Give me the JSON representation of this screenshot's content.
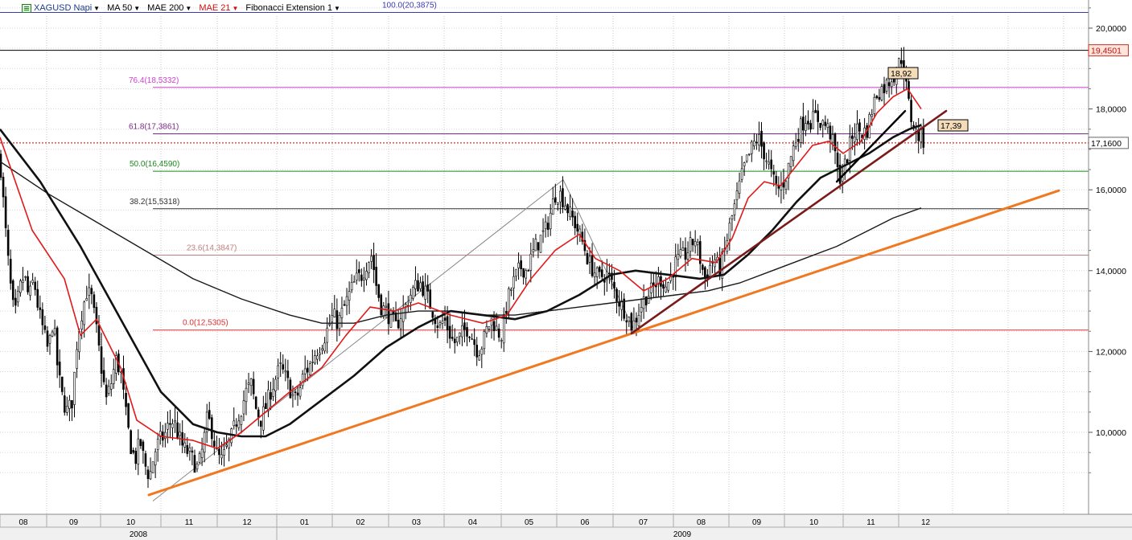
{
  "toolbar": {
    "symbol": "XAGUSD Napi",
    "ma50": "MA 50",
    "mae200": "MAE 200",
    "mae21": "MAE 21",
    "fib": "Fibonacci Extension 1",
    "colors": {
      "symbol": "#1a3a8a",
      "ma50": "#000000",
      "mae200": "#000000",
      "mae21": "#d01010",
      "fib": "#000000"
    }
  },
  "price_badges": {
    "high": "19,4501",
    "last": "17,1600",
    "peak_label": "18,92",
    "trend_label": "17,39"
  },
  "chart_data": {
    "type": "candlestick",
    "y_axis": {
      "ylim": [
        8.0,
        20.6
      ],
      "ticks": [
        "10,0000",
        "12,0000",
        "14,0000",
        "16,0000",
        "18,0000",
        "20,0000"
      ],
      "tick_values": [
        10,
        12,
        14,
        16,
        18,
        20
      ],
      "side": "right"
    },
    "x_axis": {
      "months": [
        "08",
        "09",
        "10",
        "11",
        "12",
        "01",
        "02",
        "03",
        "04",
        "05",
        "06",
        "07",
        "08",
        "09",
        "10",
        "11",
        "12"
      ],
      "years": [
        "2008",
        "2009"
      ],
      "grid": true
    },
    "fibonacci": [
      {
        "label": "100.0(20,3875)",
        "value": 20.3875,
        "color": "#3a3ab0"
      },
      {
        "label": "76.4(18,5332)",
        "value": 18.5332,
        "color": "#d040d0"
      },
      {
        "label": "61.8(17,3861)",
        "value": 17.3861,
        "color": "#7a2a8a"
      },
      {
        "label": "50.0(16,4590)",
        "value": 16.459,
        "color": "#1a8a1a"
      },
      {
        "label": "38.2(15,5318)",
        "value": 15.5318,
        "color": "#333333"
      },
      {
        "label": "23.6(14,3847)",
        "value": 14.3847,
        "color": "#c08080"
      },
      {
        "label": "0.0(12,5305)",
        "value": 12.5305,
        "color": "#e03030"
      }
    ],
    "horizontal_lines": [
      {
        "name": "high",
        "value": 19.4501,
        "color": "#000000"
      },
      {
        "name": "last",
        "value": 17.16,
        "color": "#c00000"
      }
    ],
    "close_path": [
      [
        0,
        16.8
      ],
      [
        6,
        15.2
      ],
      [
        12,
        13.8
      ],
      [
        18,
        12.8
      ],
      [
        24,
        13.5
      ],
      [
        30,
        13.9
      ],
      [
        36,
        13.3
      ],
      [
        42,
        13.8
      ],
      [
        48,
        13.0
      ],
      [
        54,
        12.5
      ],
      [
        60,
        12.0
      ],
      [
        66,
        12.8
      ],
      [
        72,
        11.5
      ],
      [
        78,
        10.8
      ],
      [
        84,
        10.5
      ],
      [
        90,
        10.8
      ],
      [
        96,
        12.3
      ],
      [
        102,
        13.0
      ],
      [
        108,
        13.5
      ],
      [
        114,
        13.3
      ],
      [
        120,
        12.5
      ],
      [
        126,
        11.6
      ],
      [
        132,
        10.8
      ],
      [
        138,
        11.2
      ],
      [
        144,
        11.8
      ],
      [
        150,
        11.5
      ],
      [
        156,
        10.5
      ],
      [
        162,
        9.7
      ],
      [
        168,
        9.3
      ],
      [
        174,
        9.8
      ],
      [
        180,
        9.2
      ],
      [
        186,
        8.9
      ],
      [
        192,
        9.5
      ],
      [
        198,
        9.8
      ],
      [
        204,
        9.9
      ],
      [
        210,
        10.2
      ],
      [
        216,
        10.3
      ],
      [
        222,
        9.9
      ],
      [
        228,
        9.6
      ],
      [
        234,
        9.5
      ],
      [
        240,
        9.3
      ],
      [
        246,
        9.1
      ],
      [
        252,
        9.6
      ],
      [
        258,
        10.4
      ],
      [
        264,
        10.0
      ],
      [
        270,
        9.4
      ],
      [
        276,
        9.3
      ],
      [
        282,
        9.6
      ],
      [
        288,
        9.9
      ],
      [
        294,
        10.3
      ],
      [
        300,
        10.6
      ],
      [
        306,
        11.0
      ],
      [
        312,
        11.2
      ],
      [
        318,
        10.6
      ],
      [
        324,
        10.3
      ],
      [
        330,
        10.6
      ],
      [
        336,
        11.0
      ],
      [
        342,
        11.3
      ],
      [
        348,
        11.6
      ],
      [
        354,
        11.4
      ],
      [
        360,
        11.1
      ],
      [
        366,
        10.8
      ],
      [
        372,
        11.0
      ],
      [
        378,
        11.5
      ],
      [
        384,
        11.6
      ],
      [
        390,
        11.9
      ],
      [
        396,
        12.1
      ],
      [
        402,
        12.3
      ],
      [
        408,
        12.6
      ],
      [
        414,
        12.9
      ],
      [
        420,
        12.7
      ],
      [
        426,
        13.0
      ],
      [
        432,
        13.3
      ],
      [
        438,
        13.6
      ],
      [
        444,
        13.8
      ],
      [
        450,
        13.9
      ],
      [
        456,
        14.2
      ],
      [
        462,
        14.4
      ],
      [
        468,
        13.6
      ],
      [
        474,
        13.1
      ],
      [
        480,
        13.0
      ],
      [
        486,
        12.8
      ],
      [
        492,
        12.6
      ],
      [
        498,
        12.9
      ],
      [
        504,
        13.1
      ],
      [
        510,
        13.4
      ],
      [
        516,
        13.6
      ],
      [
        522,
        13.7
      ],
      [
        528,
        13.5
      ],
      [
        534,
        13.2
      ],
      [
        540,
        12.9
      ],
      [
        546,
        12.6
      ],
      [
        552,
        12.8
      ],
      [
        558,
        12.5
      ],
      [
        564,
        12.2
      ],
      [
        570,
        12.3
      ],
      [
        576,
        12.5
      ],
      [
        582,
        12.6
      ],
      [
        588,
        12.3
      ],
      [
        594,
        12.0
      ],
      [
        600,
        12.2
      ],
      [
        606,
        12.6
      ],
      [
        612,
        12.8
      ],
      [
        618,
        12.5
      ],
      [
        624,
        12.4
      ],
      [
        630,
        13.2
      ],
      [
        636,
        13.6
      ],
      [
        642,
        13.9
      ],
      [
        648,
        14.1
      ],
      [
        654,
        14.0
      ],
      [
        660,
        14.3
      ],
      [
        666,
        14.6
      ],
      [
        672,
        14.8
      ],
      [
        678,
        15.0
      ],
      [
        684,
        15.4
      ],
      [
        690,
        15.9
      ],
      [
        696,
        15.9
      ],
      [
        702,
        15.7
      ],
      [
        708,
        15.4
      ],
      [
        714,
        15.2
      ],
      [
        720,
        14.9
      ],
      [
        726,
        14.6
      ],
      [
        732,
        14.2
      ],
      [
        738,
        14.0
      ],
      [
        744,
        13.8
      ],
      [
        750,
        13.9
      ],
      [
        756,
        13.9
      ],
      [
        762,
        13.6
      ],
      [
        768,
        13.3
      ],
      [
        774,
        13.1
      ],
      [
        780,
        12.9
      ],
      [
        786,
        12.6
      ],
      [
        792,
        12.9
      ],
      [
        798,
        13.2
      ],
      [
        804,
        13.4
      ],
      [
        810,
        13.5
      ],
      [
        816,
        13.7
      ],
      [
        822,
        13.8
      ],
      [
        828,
        13.6
      ],
      [
        834,
        13.9
      ],
      [
        840,
        14.2
      ],
      [
        846,
        14.3
      ],
      [
        852,
        14.4
      ],
      [
        858,
        14.6
      ],
      [
        864,
        14.8
      ],
      [
        870,
        14.3
      ],
      [
        876,
        13.8
      ],
      [
        882,
        14.1
      ],
      [
        888,
        14.3
      ],
      [
        894,
        14.0
      ],
      [
        900,
        14.4
      ],
      [
        906,
        15.0
      ],
      [
        912,
        15.5
      ],
      [
        918,
        16.0
      ],
      [
        924,
        16.5
      ],
      [
        930,
        16.8
      ],
      [
        936,
        17.1
      ],
      [
        942,
        17.3
      ],
      [
        948,
        17.0
      ],
      [
        954,
        16.7
      ],
      [
        960,
        16.3
      ],
      [
        966,
        16.0
      ],
      [
        972,
        16.1
      ],
      [
        978,
        16.4
      ],
      [
        984,
        16.9
      ],
      [
        990,
        17.3
      ],
      [
        996,
        17.6
      ],
      [
        1002,
        17.8
      ],
      [
        1008,
        17.7
      ],
      [
        1014,
        17.8
      ],
      [
        1020,
        17.7
      ],
      [
        1026,
        17.6
      ],
      [
        1032,
        17.4
      ],
      [
        1038,
        16.9
      ],
      [
        1042,
        16.3
      ],
      [
        1048,
        16.4
      ],
      [
        1054,
        16.9
      ],
      [
        1060,
        17.4
      ],
      [
        1066,
        17.5
      ],
      [
        1072,
        17.4
      ],
      [
        1078,
        17.5
      ],
      [
        1084,
        18.0
      ],
      [
        1090,
        18.4
      ],
      [
        1096,
        18.5
      ],
      [
        1102,
        18.6
      ],
      [
        1108,
        18.8
      ],
      [
        1114,
        18.9
      ],
      [
        1120,
        19.3
      ],
      [
        1124,
        18.9
      ],
      [
        1128,
        18.3
      ],
      [
        1132,
        17.8
      ],
      [
        1136,
        17.6
      ],
      [
        1140,
        17.3
      ],
      [
        1144,
        17.4
      ],
      [
        1148,
        17.2
      ]
    ],
    "mae21": [
      [
        0,
        17.3
      ],
      [
        40,
        15.0
      ],
      [
        80,
        13.8
      ],
      [
        100,
        12.4
      ],
      [
        120,
        12.8
      ],
      [
        150,
        11.6
      ],
      [
        170,
        10.3
      ],
      [
        200,
        9.9
      ],
      [
        240,
        9.8
      ],
      [
        270,
        9.6
      ],
      [
        300,
        10.0
      ],
      [
        330,
        10.5
      ],
      [
        360,
        11.0
      ],
      [
        400,
        11.6
      ],
      [
        430,
        12.4
      ],
      [
        460,
        13.1
      ],
      [
        490,
        13.0
      ],
      [
        520,
        13.2
      ],
      [
        560,
        12.9
      ],
      [
        600,
        12.7
      ],
      [
        630,
        12.9
      ],
      [
        660,
        13.8
      ],
      [
        690,
        14.5
      ],
      [
        720,
        14.9
      ],
      [
        740,
        14.3
      ],
      [
        770,
        14.0
      ],
      [
        800,
        13.5
      ],
      [
        830,
        13.8
      ],
      [
        860,
        14.3
      ],
      [
        890,
        14.2
      ],
      [
        910,
        14.8
      ],
      [
        930,
        15.8
      ],
      [
        950,
        16.2
      ],
      [
        970,
        16.1
      ],
      [
        990,
        16.6
      ],
      [
        1010,
        17.1
      ],
      [
        1030,
        17.2
      ],
      [
        1048,
        16.9
      ],
      [
        1070,
        17.2
      ],
      [
        1090,
        17.9
      ],
      [
        1110,
        18.3
      ],
      [
        1128,
        18.5
      ],
      [
        1145,
        18.0
      ]
    ],
    "ma50": [
      [
        0,
        17.5
      ],
      [
        50,
        16.2
      ],
      [
        100,
        14.6
      ],
      [
        150,
        12.8
      ],
      [
        200,
        11.0
      ],
      [
        240,
        10.2
      ],
      [
        270,
        10.0
      ],
      [
        300,
        9.9
      ],
      [
        330,
        9.9
      ],
      [
        360,
        10.2
      ],
      [
        400,
        10.8
      ],
      [
        440,
        11.4
      ],
      [
        480,
        12.1
      ],
      [
        520,
        12.6
      ],
      [
        560,
        13.0
      ],
      [
        600,
        12.9
      ],
      [
        640,
        12.8
      ],
      [
        680,
        13.0
      ],
      [
        720,
        13.4
      ],
      [
        760,
        13.9
      ],
      [
        790,
        14.0
      ],
      [
        830,
        13.9
      ],
      [
        870,
        13.8
      ],
      [
        900,
        13.9
      ],
      [
        930,
        14.4
      ],
      [
        960,
        15.0
      ],
      [
        990,
        15.7
      ],
      [
        1020,
        16.3
      ],
      [
        1050,
        16.6
      ],
      [
        1080,
        16.9
      ],
      [
        1110,
        17.3
      ],
      [
        1130,
        17.5
      ],
      [
        1145,
        17.6
      ]
    ],
    "mae200": [
      [
        0,
        16.7
      ],
      [
        60,
        15.9
      ],
      [
        120,
        15.2
      ],
      [
        180,
        14.5
      ],
      [
        240,
        13.8
      ],
      [
        300,
        13.3
      ],
      [
        360,
        12.9
      ],
      [
        400,
        12.7
      ],
      [
        440,
        12.7
      ],
      [
        480,
        12.9
      ],
      [
        520,
        13.0
      ],
      [
        560,
        13.0
      ],
      [
        600,
        12.9
      ],
      [
        640,
        12.9
      ],
      [
        680,
        13.0
      ],
      [
        720,
        13.1
      ],
      [
        760,
        13.2
      ],
      [
        800,
        13.3
      ],
      [
        840,
        13.4
      ],
      [
        880,
        13.5
      ],
      [
        920,
        13.7
      ],
      [
        960,
        14.0
      ],
      [
        1000,
        14.3
      ],
      [
        1040,
        14.6
      ],
      [
        1080,
        15.0
      ],
      [
        1110,
        15.3
      ],
      [
        1145,
        15.55
      ]
    ],
    "trendlines": [
      {
        "name": "long-term-support",
        "color": "#f07820",
        "points": [
          [
            185,
            8.45
          ],
          [
            1316,
            15.98
          ]
        ]
      },
      {
        "name": "medium-term-support",
        "color": "#7a1a1a",
        "points": [
          [
            785,
            12.45
          ],
          [
            1176,
            17.95
          ]
        ]
      },
      {
        "name": "short-term-support",
        "color": "#000000",
        "points": [
          [
            1040,
            16.2
          ],
          [
            1125,
            17.95
          ]
        ]
      }
    ],
    "fib_projection_lines": [
      [
        [
          190,
          8.3
        ],
        [
          700,
          16.25
        ]
      ],
      [
        [
          700,
          16.25
        ],
        [
          790,
          12.45
        ]
      ]
    ]
  }
}
